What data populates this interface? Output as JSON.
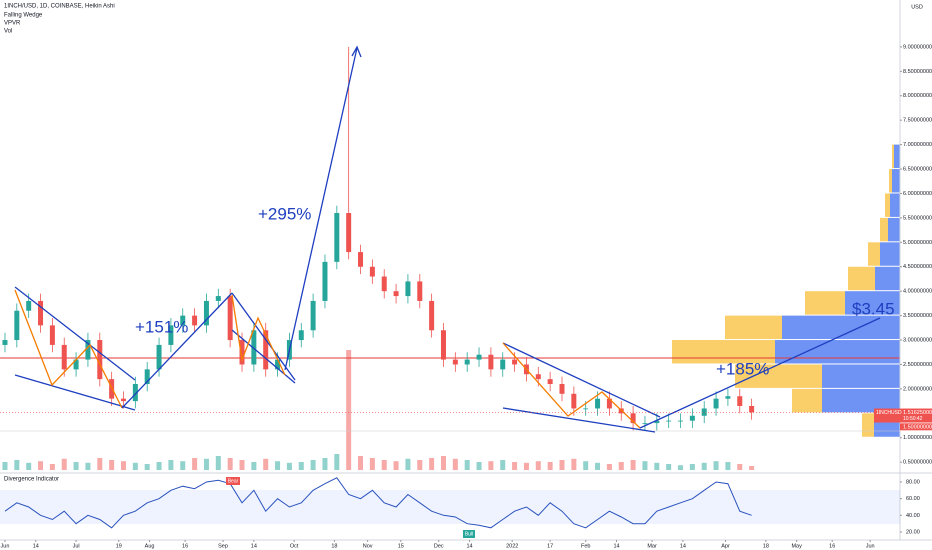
{
  "header": {
    "symbol": "1INCH/USD, 1D, COINBASE, Heikin Ashi",
    "indicators": [
      "Falling Wedge",
      "VPVR",
      "Vol"
    ],
    "currency": "USD"
  },
  "chart_data": [
    {
      "type": "candlestick",
      "up_color": "#26a69a",
      "down_color": "#ef5350",
      "xlim": [
        -2.1,
        377.6
      ],
      "ylim": [
        0.34,
        9.96
      ],
      "xticks": [
        {
          "value": 0,
          "label": "Jun"
        },
        {
          "value": 13,
          "label": "14"
        },
        {
          "value": 30,
          "label": "Jul"
        },
        {
          "value": 48,
          "label": "19"
        },
        {
          "value": 61,
          "label": "Aug"
        },
        {
          "value": 76,
          "label": "16"
        },
        {
          "value": 92,
          "label": "Sep"
        },
        {
          "value": 105,
          "label": "14"
        },
        {
          "value": 122,
          "label": "Oct"
        },
        {
          "value": 139,
          "label": "18"
        },
        {
          "value": 153,
          "label": "Nov"
        },
        {
          "value": 167,
          "label": "15"
        },
        {
          "value": 183,
          "label": "Dec"
        },
        {
          "value": 196,
          "label": "14"
        },
        {
          "value": 214,
          "label": "2022"
        },
        {
          "value": 230,
          "label": "17"
        },
        {
          "value": 245,
          "label": "Feb"
        },
        {
          "value": 258,
          "label": "14"
        },
        {
          "value": 273,
          "label": "Mar"
        },
        {
          "value": 286,
          "label": "14"
        },
        {
          "value": 304,
          "label": "Apr"
        },
        {
          "value": 321,
          "label": "18"
        },
        {
          "value": 334,
          "label": "May"
        },
        {
          "value": 349,
          "label": "16"
        },
        {
          "value": 365,
          "label": "Jun"
        }
      ],
      "yticks": [
        {
          "value": 0.5,
          "label": "0.50000000"
        },
        {
          "value": 1,
          "label": "1.00000000"
        },
        {
          "value": 2,
          "label": "2.00000000"
        },
        {
          "value": 2.5,
          "label": "2.50000000"
        },
        {
          "value": 3,
          "label": "3.00000000"
        },
        {
          "value": 3.5,
          "label": "3.50000000"
        },
        {
          "value": 4,
          "label": "4.00000000"
        },
        {
          "value": 4.5,
          "label": "4.50000000"
        },
        {
          "value": 5,
          "label": "5.00000000"
        },
        {
          "value": 5.5,
          "label": "5.50000000"
        },
        {
          "value": 6,
          "label": "6.00000000"
        },
        {
          "value": 6.5,
          "label": "6.50000000"
        },
        {
          "value": 7,
          "label": "7.00000000"
        },
        {
          "value": 7.5,
          "label": "7.50000000"
        },
        {
          "value": 8,
          "label": "8.00000000"
        },
        {
          "value": 8.5,
          "label": "8.50000000"
        },
        {
          "value": 9,
          "label": "9.00000000"
        }
      ],
      "x": [
        0,
        5,
        10,
        15,
        20,
        25,
        30,
        35,
        40,
        45,
        50,
        55,
        60,
        65,
        70,
        75,
        80,
        85,
        90,
        95,
        100,
        105,
        110,
        115,
        120,
        125,
        130,
        135,
        140,
        145,
        150,
        155,
        160,
        165,
        170,
        175,
        180,
        185,
        190,
        195,
        200,
        205,
        210,
        215,
        220,
        225,
        230,
        235,
        240,
        245,
        250,
        255,
        260,
        265,
        270,
        275,
        280,
        285,
        290,
        295,
        300,
        305,
        310,
        315
      ],
      "open": [
        2.9,
        3.0,
        3.6,
        3.8,
        3.3,
        2.9,
        2.4,
        2.6,
        3.0,
        2.2,
        1.8,
        1.75,
        2.1,
        2.4,
        2.9,
        3.3,
        3.5,
        3.3,
        3.8,
        3.9,
        3.0,
        2.5,
        3.2,
        2.4,
        2.6,
        3.0,
        3.2,
        3.8,
        4.6,
        5.6,
        4.8,
        4.5,
        4.3,
        4.0,
        3.9,
        4.2,
        3.8,
        3.2,
        2.6,
        2.5,
        2.6,
        2.7,
        2.4,
        2.6,
        2.5,
        2.3,
        2.2,
        2.1,
        1.9,
        1.6,
        1.6,
        1.8,
        1.6,
        1.5,
        1.3,
        1.3,
        1.35,
        1.35,
        1.35,
        1.45,
        1.6,
        1.8,
        1.85,
        1.65
      ],
      "high": [
        3.15,
        3.75,
        3.95,
        3.95,
        3.45,
        3.05,
        2.75,
        3.15,
        3.15,
        2.35,
        1.95,
        2.25,
        2.55,
        3.05,
        3.45,
        3.65,
        3.65,
        3.95,
        4.05,
        4.05,
        3.15,
        3.35,
        3.35,
        2.75,
        3.15,
        3.35,
        3.95,
        4.75,
        5.75,
        9.0,
        4.95,
        4.65,
        4.45,
        4.15,
        4.35,
        4.35,
        3.95,
        3.35,
        2.75,
        2.75,
        2.85,
        2.85,
        2.75,
        2.75,
        2.65,
        2.45,
        2.35,
        2.25,
        2.05,
        1.75,
        1.95,
        1.95,
        1.75,
        1.65,
        1.45,
        1.5,
        1.5,
        1.5,
        1.6,
        1.75,
        1.95,
        2.0,
        2.0,
        1.8
      ],
      "low": [
        2.75,
        2.85,
        3.45,
        3.15,
        2.75,
        2.25,
        2.25,
        2.45,
        2.05,
        1.65,
        1.6,
        1.6,
        1.95,
        2.25,
        2.75,
        3.15,
        3.15,
        3.15,
        3.65,
        2.85,
        2.35,
        2.35,
        2.25,
        2.25,
        2.45,
        2.85,
        3.05,
        3.65,
        4.45,
        4.65,
        4.35,
        4.15,
        3.85,
        3.75,
        3.75,
        3.65,
        3.05,
        2.45,
        2.35,
        2.35,
        2.45,
        2.25,
        2.25,
        2.35,
        2.15,
        2.05,
        1.95,
        1.75,
        1.45,
        1.45,
        1.45,
        1.45,
        1.35,
        1.15,
        1.15,
        1.15,
        1.2,
        1.2,
        1.2,
        1.3,
        1.45,
        1.65,
        1.5,
        1.37
      ],
      "close": [
        3.0,
        3.6,
        3.8,
        3.3,
        2.9,
        2.4,
        2.6,
        3.0,
        2.2,
        1.8,
        1.75,
        2.1,
        2.4,
        2.9,
        3.3,
        3.5,
        3.3,
        3.8,
        3.9,
        3.0,
        2.5,
        3.2,
        2.4,
        2.6,
        3.0,
        3.2,
        3.8,
        4.6,
        5.6,
        4.8,
        4.5,
        4.3,
        4.0,
        3.9,
        4.2,
        3.8,
        3.2,
        2.6,
        2.5,
        2.6,
        2.7,
        2.4,
        2.6,
        2.5,
        2.3,
        2.2,
        2.1,
        1.9,
        1.6,
        1.6,
        1.8,
        1.6,
        1.5,
        1.3,
        1.3,
        1.35,
        1.35,
        1.35,
        1.45,
        1.6,
        1.8,
        1.85,
        1.65,
        1.52
      ],
      "annotations": [
        "+295%",
        "+151%",
        "+185%",
        "$3.45"
      ],
      "price_tag": {
        "symbol": "1INCHUSD",
        "value": 1.51625,
        "label": "1.51625000",
        "countdown": "10:50:42"
      },
      "marker_label": {
        "value": 1.5,
        "label": "1.50000000"
      }
    },
    {
      "type": "bar",
      "name": "Vol",
      "values": [
        20,
        25,
        18,
        22,
        15,
        28,
        20,
        18,
        30,
        25,
        22,
        18,
        15,
        20,
        25,
        22,
        30,
        28,
        35,
        30,
        25,
        20,
        28,
        22,
        18,
        20,
        25,
        30,
        40,
        300,
        35,
        30,
        25,
        22,
        28,
        25,
        30,
        35,
        28,
        25,
        20,
        22,
        25,
        20,
        18,
        22,
        20,
        25,
        28,
        22,
        18,
        15,
        20,
        25,
        22,
        18,
        15,
        12,
        15,
        18,
        22,
        20,
        15,
        10
      ]
    },
    {
      "type": "profile",
      "name": "VPVR",
      "levels": [
        1.0,
        1.5,
        2.0,
        2.5,
        3.0,
        3.5,
        4.0,
        4.5,
        5.0,
        5.5,
        6.0,
        6.5
      ],
      "down": [
        12,
        30,
        87,
        103,
        57,
        40,
        27,
        12,
        8,
        5,
        3,
        2
      ],
      "up": [
        26,
        78,
        78,
        125,
        118,
        55,
        25,
        20,
        12,
        10,
        8,
        6
      ],
      "down_color": "#f9c74f",
      "up_color": "#3f6df2"
    },
    {
      "type": "line",
      "title": "Divergence Indicator",
      "color": "#2a52be",
      "ylim": [
        10.4,
        88.4
      ],
      "yticks": [
        {
          "value": 20,
          "label": "20.00"
        },
        {
          "value": 40,
          "label": "40.00"
        },
        {
          "value": 60,
          "label": "60.00"
        },
        {
          "value": 80,
          "label": "80.00"
        }
      ],
      "values": [
        45,
        55,
        50,
        40,
        35,
        45,
        30,
        40,
        35,
        25,
        40,
        45,
        55,
        60,
        70,
        75,
        72,
        80,
        82,
        78,
        55,
        70,
        45,
        60,
        50,
        55,
        70,
        78,
        85,
        65,
        60,
        70,
        55,
        50,
        65,
        55,
        45,
        40,
        38,
        30,
        28,
        25,
        35,
        45,
        50,
        40,
        55,
        45,
        30,
        25,
        35,
        45,
        38,
        30,
        30,
        45,
        50,
        55,
        60,
        70,
        80,
        78,
        45,
        40
      ],
      "signals": [
        "Bear",
        "Bull"
      ]
    }
  ]
}
